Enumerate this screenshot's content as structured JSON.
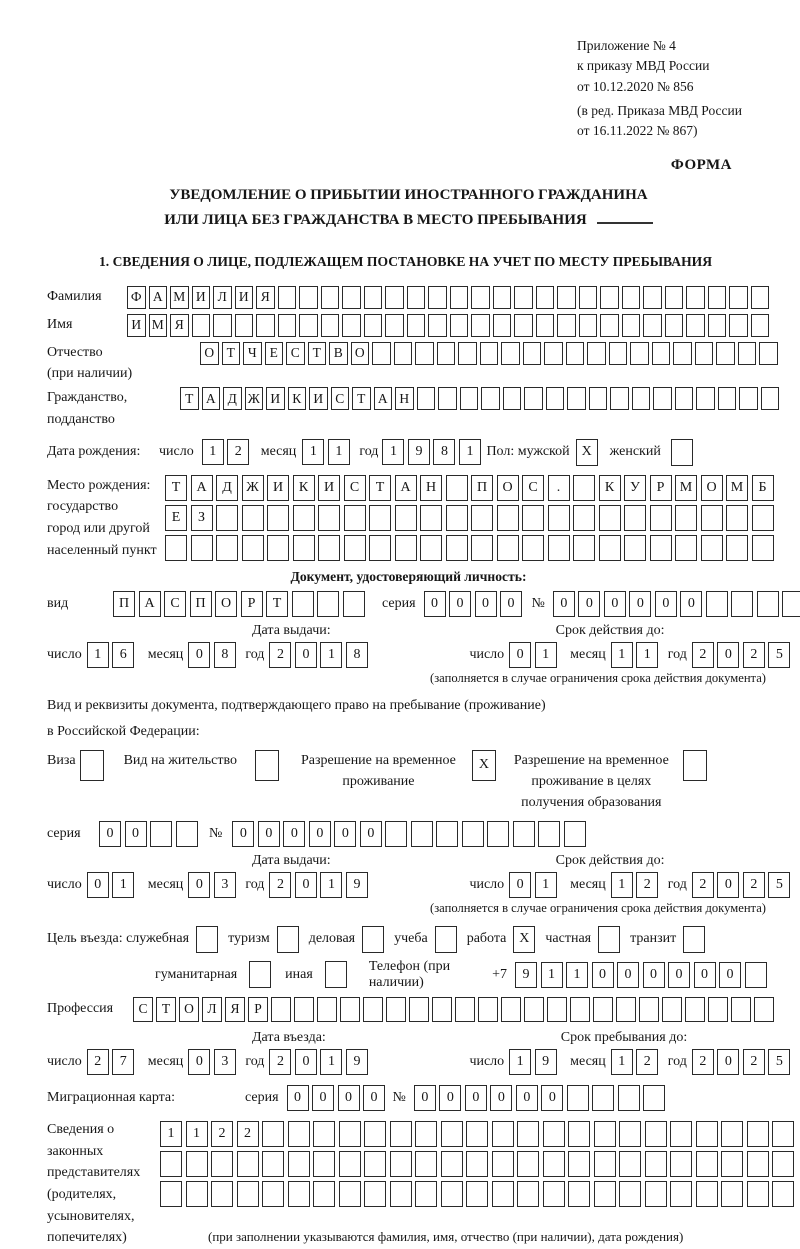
{
  "colors": {
    "ink": "#161616",
    "paper": "#ffffff"
  },
  "header": {
    "appendix_lines": [
      "Приложение № 4",
      "к приказу МВД России",
      "от 10.12.2020 № 856",
      "(в ред. Приказа МВД России",
      "от 16.11.2022 № 867)"
    ],
    "forma": "ФОРМА",
    "title_line1": "УВЕДОМЛЕНИЕ О ПРИБЫТИИ ИНОСТРАННОГО ГРАЖДАНИНА",
    "title_line2": "ИЛИ ЛИЦА БЕЗ ГРАЖДАНСТВА В МЕСТО ПРЕБЫВАНИЯ",
    "section1": "1. СВЕДЕНИЯ О ЛИЦЕ, ПОДЛЕЖАЩЕМ ПОСТАНОВКЕ НА УЧЕТ ПО МЕСТУ ПРЕБЫВАНИЯ"
  },
  "labels": {
    "surname": "Фамилия",
    "name": "Имя",
    "patronymic1": "Отчество",
    "patronymic2": "(при наличии)",
    "citizenship1": "Гражданство,",
    "citizenship2": "подданство",
    "birth_date": "Дата рождения:",
    "day": "число",
    "month": "месяц",
    "year": "год",
    "sex_male": "Пол: мужской",
    "sex_female": "женский",
    "birth_place1": "Место рождения:",
    "birth_place2": "государство",
    "birth_place3": "город или другой",
    "birth_place4": "населенный пункт",
    "id_doc_header": "Документ, удостоверяющий личность:",
    "doc_type": "вид",
    "seriya": "серия",
    "num": "№",
    "issue_date": "Дата выдачи:",
    "valid_until": "Срок действия до:",
    "restriction_note": "(заполняется в случае ограничения срока действия документа)",
    "residence_line1": "Вид и реквизиты документа, подтверждающего право на пребывание (проживание)",
    "residence_line2": "в Российской Федерации:",
    "visa": "Виза",
    "residence_permit": "Вид на жительство",
    "temp_permit1": "Разрешение на временное",
    "temp_permit2": "проживание",
    "edu_permit1": "Разрешение на временное",
    "edu_permit2": "проживание в целях",
    "edu_permit3": "получения образования",
    "purpose": "Цель въезда: служебная",
    "tourism": "туризм",
    "business": "деловая",
    "study": "учеба",
    "work": "работа",
    "private": "частная",
    "transit": "транзит",
    "humanitarian": "гуманитарная",
    "other": "иная",
    "phone": "Телефон (при наличии)",
    "phone_prefix": "+7",
    "profession": "Профессия",
    "entry_date": "Дата въезда:",
    "stay_until": "Срок пребывания до:",
    "migration_card": "Миграционная карта:",
    "guardians1": "Сведения о",
    "guardians2": "законных",
    "guardians3": "представителях",
    "guardians4": "(родителях,",
    "guardians5": "усыновителях,",
    "guardians6": "попечителях)",
    "guardians_note": "(при заполнении указываются фамилия, имя, отчество (при наличии), дата рождения)"
  },
  "values": {
    "surname": {
      "chars": "ФАМИЛИЯ",
      "total": 30
    },
    "name": {
      "chars": "ИМЯ",
      "total": 30
    },
    "patronymic": {
      "chars": "ОТЧЕСТВО",
      "total": 27
    },
    "citizenship": {
      "chars": "ТАДЖИКИСТАН",
      "total": 28
    },
    "birth_day": {
      "chars": "12",
      "total": 2
    },
    "birth_month": {
      "chars": "11",
      "total": 2
    },
    "birth_year": {
      "chars": "1981",
      "total": 4
    },
    "sex_male_checked": "X",
    "sex_female_checked": "",
    "birth_place_row1": {
      "chars": "ТАДЖИКИСТАН ПОС. КУРМОМБ",
      "total": 24
    },
    "birth_place_row2": {
      "chars": "ЕЗ",
      "total": 24
    },
    "birth_place_row3": {
      "chars": "",
      "total": 24
    },
    "doc_type": {
      "chars": "ПАСПОРТ",
      "total": 10
    },
    "doc_seriya": {
      "chars": "0000",
      "total": 4
    },
    "doc_number": {
      "chars": "000000",
      "total": 11
    },
    "doc_issue_day": {
      "chars": "16",
      "total": 2
    },
    "doc_issue_month": {
      "chars": "08",
      "total": 2
    },
    "doc_issue_year": {
      "chars": "2018",
      "total": 4
    },
    "doc_valid_day": {
      "chars": "01",
      "total": 2
    },
    "doc_valid_month": {
      "chars": "11",
      "total": 2
    },
    "doc_valid_year": {
      "chars": "2025",
      "total": 4
    },
    "visa_checked": "",
    "residence_permit_checked": "",
    "temp_permit_checked": "X",
    "edu_permit_checked": "",
    "permit_seriya": {
      "chars": "00",
      "total": 4
    },
    "permit_number": {
      "chars": "000000",
      "total": 14
    },
    "permit_issue_day": {
      "chars": "01",
      "total": 2
    },
    "permit_issue_month": {
      "chars": "03",
      "total": 2
    },
    "permit_issue_year": {
      "chars": "2019",
      "total": 4
    },
    "permit_valid_day": {
      "chars": "01",
      "total": 2
    },
    "permit_valid_month": {
      "chars": "12",
      "total": 2
    },
    "permit_valid_year": {
      "chars": "2025",
      "total": 4
    },
    "purpose_official": "",
    "purpose_tourism": "",
    "purpose_business": "",
    "purpose_study": "",
    "purpose_work": "X",
    "purpose_private": "",
    "purpose_transit": "",
    "purpose_humanitarian": "",
    "purpose_other": "",
    "phone": {
      "chars": "911000000",
      "total": 10
    },
    "profession": {
      "chars": "СТОЛЯР",
      "total": 28
    },
    "entry_day": {
      "chars": "27",
      "total": 2
    },
    "entry_month": {
      "chars": "03",
      "total": 2
    },
    "entry_year": {
      "chars": "2019",
      "total": 4
    },
    "stay_day": {
      "chars": "19",
      "total": 2
    },
    "stay_month": {
      "chars": "12",
      "total": 2
    },
    "stay_year": {
      "chars": "2025",
      "total": 4
    },
    "migcard_seriya": {
      "chars": "0000",
      "total": 4
    },
    "migcard_number": {
      "chars": "000000",
      "total": 10
    },
    "guardians_row1": {
      "chars": "1122",
      "total": 25
    },
    "guardians_row2": {
      "chars": "",
      "total": 25
    },
    "guardians_row3": {
      "chars": "",
      "total": 25
    }
  }
}
